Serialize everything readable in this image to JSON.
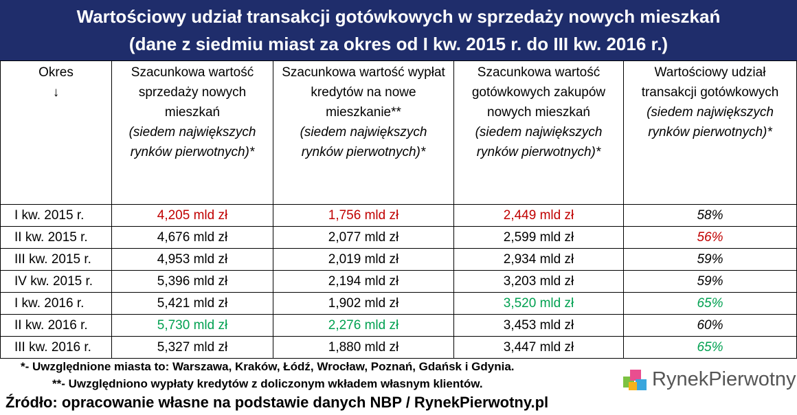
{
  "header": {
    "title_line1": "Wartościowy udział transakcji gotówkowych w sprzedaży nowych mieszkań",
    "title_line2": "(dane z siedmiu miast za okres od I kw. 2015 r. do III kw. 2016 r.)"
  },
  "table": {
    "columns": [
      {
        "text": "Okres",
        "note": "↓"
      },
      {
        "text": "Szacunkowa wartość sprzedaży nowych mieszkań",
        "note": "(siedem największych rynków pierwotnych)*"
      },
      {
        "text": "Szacunkowa wartość wypłat kredytów na nowe mieszkanie**",
        "note": "(siedem największych rynków pierwotnych)*"
      },
      {
        "text": "Szacunkowa wartość gotówkowych zakupów nowych mieszkań",
        "note": "(siedem największych rynków pierwotnych)*"
      },
      {
        "text": "Wartościowy udział transakcji gotówkowych",
        "note": "(siedem największych rynków pierwotnych)*"
      }
    ],
    "rows": [
      {
        "period": "I kw. 2015 r.",
        "cells": [
          {
            "text": "4,205 mld zł",
            "color": "#c00000"
          },
          {
            "text": "1,756 mld zł",
            "color": "#c00000"
          },
          {
            "text": "2,449 mld zł",
            "color": "#c00000"
          },
          {
            "text": "58%",
            "color": "#000000"
          }
        ]
      },
      {
        "period": "II kw. 2015 r.",
        "cells": [
          {
            "text": "4,676 mld zł",
            "color": "#000000"
          },
          {
            "text": "2,077 mld zł",
            "color": "#000000"
          },
          {
            "text": "2,599 mld zł",
            "color": "#000000"
          },
          {
            "text": "56%",
            "color": "#c00000"
          }
        ]
      },
      {
        "period": "III kw. 2015 r.",
        "cells": [
          {
            "text": "4,953 mld zł",
            "color": "#000000"
          },
          {
            "text": "2,019 mld zł",
            "color": "#000000"
          },
          {
            "text": "2,934 mld zł",
            "color": "#000000"
          },
          {
            "text": "59%",
            "color": "#000000"
          }
        ]
      },
      {
        "period": "IV kw. 2015 r.",
        "cells": [
          {
            "text": "5,396 mld zł",
            "color": "#000000"
          },
          {
            "text": "2,194 mld zł",
            "color": "#000000"
          },
          {
            "text": "3,203 mld zł",
            "color": "#000000"
          },
          {
            "text": "59%",
            "color": "#000000"
          }
        ]
      },
      {
        "period": "I kw. 2016 r.",
        "cells": [
          {
            "text": "5,421 mld zł",
            "color": "#000000"
          },
          {
            "text": "1,902 mld zł",
            "color": "#000000"
          },
          {
            "text": "3,520 mld zł",
            "color": "#00a050"
          },
          {
            "text": "65%",
            "color": "#00a050"
          }
        ]
      },
      {
        "period": "II kw. 2016 r.",
        "cells": [
          {
            "text": "5,730 mld zł",
            "color": "#00a050"
          },
          {
            "text": "2,276 mld zł",
            "color": "#00a050"
          },
          {
            "text": "3,453 mld zł",
            "color": "#000000"
          },
          {
            "text": "60%",
            "color": "#000000"
          }
        ]
      },
      {
        "period": "III kw. 2016 r.",
        "cells": [
          {
            "text": "5,327 mld zł",
            "color": "#000000"
          },
          {
            "text": "1,880 mld zł",
            "color": "#000000"
          },
          {
            "text": "3,447 mld zł",
            "color": "#000000"
          },
          {
            "text": "65%",
            "color": "#00a050"
          }
        ]
      }
    ]
  },
  "footer": {
    "note1": "*- Uwzględnione miasta to: Warszawa, Kraków, Łódź, Wrocław, Poznań, Gdańsk i Gdynia.",
    "note2": "**- Uwzględniono wypłaty kredytów z doliczonym wkładem własnym klientów.",
    "source": "Źródło: opracowanie własne na podstawie danych NBP / RynekPierwotny.pl",
    "logo": "RynekPierwotny"
  }
}
